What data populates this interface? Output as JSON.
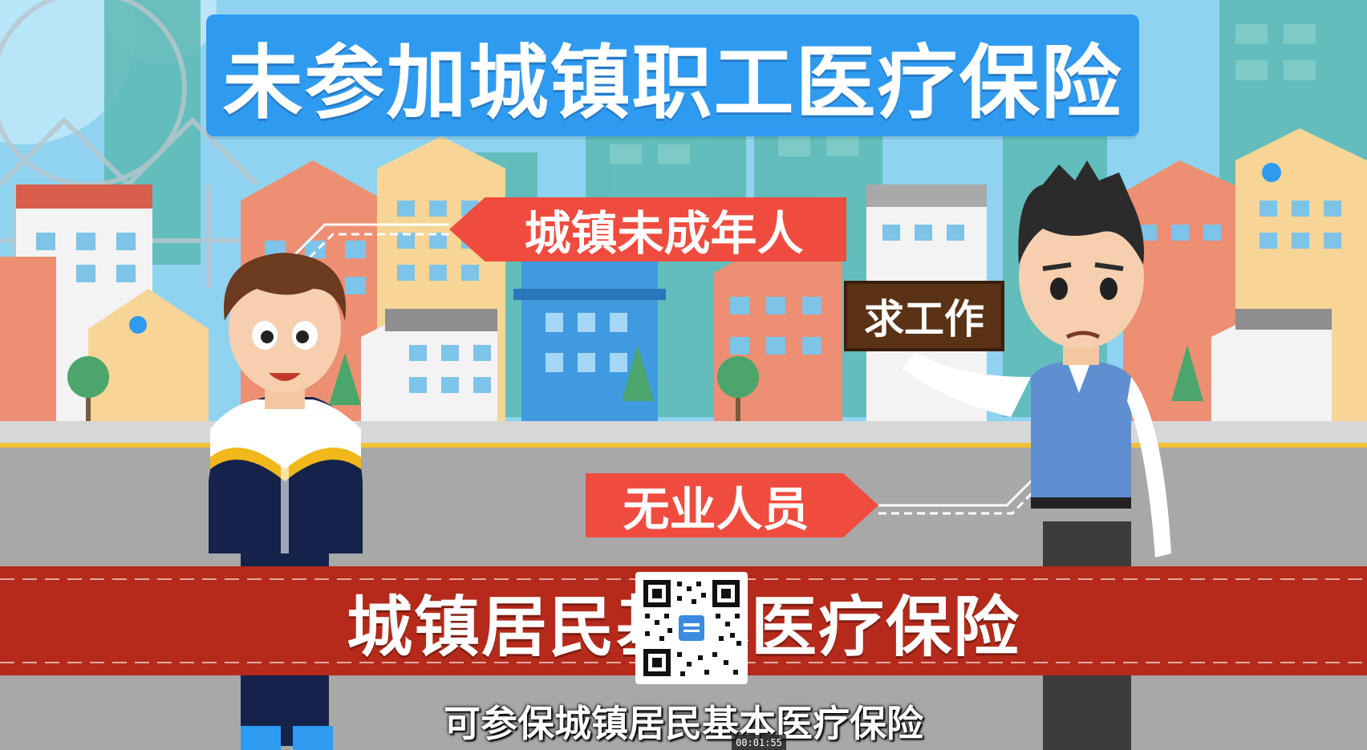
{
  "title": "未参加城镇职工医疗保险",
  "tags": {
    "minors": "城镇未成年人",
    "unemployed": "无业人员",
    "job_sign": "求工作"
  },
  "bottom_banner": "城镇居民基本医疗保险",
  "subtitle": "可参保城镇居民基本医疗保险",
  "player": {
    "timestamp": "00:01:55"
  },
  "qr_code": {
    "icon": "qr-code-icon"
  },
  "colors": {
    "sky": "#8fd3f0",
    "title_banner": "#2f9bf0",
    "tag_red": "#ef4c3f",
    "bottom_band": "#b52a1a",
    "road": "#a8a8a8",
    "sign_brown": "#5a3317"
  }
}
